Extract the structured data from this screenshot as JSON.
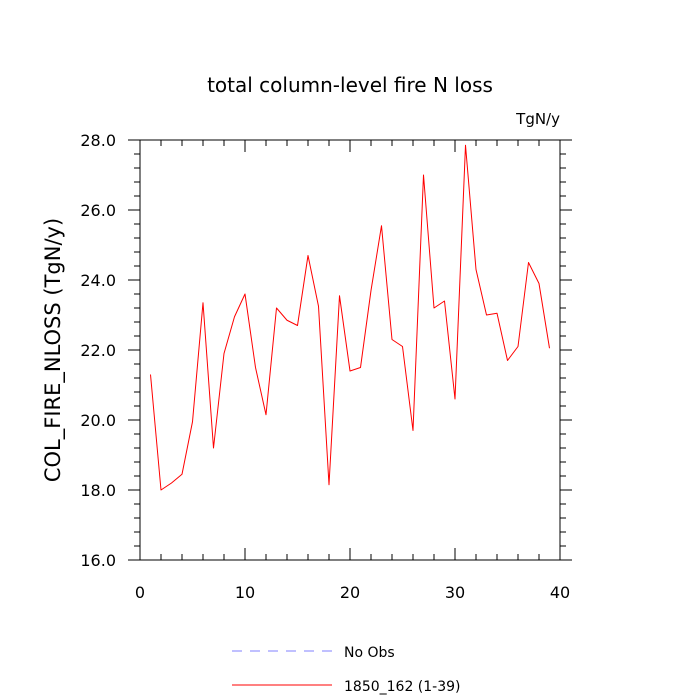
{
  "chart_data": {
    "type": "line",
    "title": "total column-level fire N loss",
    "units_label": "TgN/y",
    "xlabel": "",
    "ylabel": "COL_FIRE_NLOSS  (TgN/y)",
    "xlim": [
      0,
      40
    ],
    "ylim": [
      16,
      28
    ],
    "x_ticks": [
      0,
      10,
      20,
      30,
      40
    ],
    "y_ticks": [
      16,
      18,
      20,
      22,
      24,
      26,
      28
    ],
    "x_tick_labels": [
      "0",
      "10",
      "20",
      "30",
      "40"
    ],
    "y_tick_labels": [
      "16.0",
      "18.0",
      "20.0",
      "22.0",
      "24.0",
      "26.0",
      "28.0"
    ],
    "grid": false,
    "series": [
      {
        "name": "1850_162 (1-39)",
        "color": "#ff0000",
        "style": "solid",
        "x": [
          1,
          2,
          3,
          4,
          5,
          6,
          7,
          8,
          9,
          10,
          11,
          12,
          13,
          14,
          15,
          16,
          17,
          18,
          19,
          20,
          21,
          22,
          23,
          24,
          25,
          26,
          27,
          28,
          29,
          30,
          31,
          32,
          33,
          34,
          35,
          36,
          37,
          38,
          39
        ],
        "values": [
          21.3,
          18.0,
          18.2,
          18.45,
          19.95,
          23.35,
          19.2,
          21.9,
          22.95,
          23.6,
          21.5,
          20.15,
          23.2,
          22.85,
          22.7,
          24.7,
          23.25,
          18.15,
          23.55,
          21.4,
          21.5,
          23.7,
          25.55,
          22.3,
          22.1,
          19.7,
          27.0,
          23.2,
          23.4,
          20.6,
          27.85,
          24.3,
          23.0,
          23.05,
          21.7,
          22.1,
          24.5,
          23.9,
          22.05
        ]
      },
      {
        "name": "No Obs",
        "color": "#8080ff",
        "style": "dashed",
        "x": [],
        "values": []
      }
    ],
    "legend": {
      "placement": "bottom",
      "entries": [
        "No Obs",
        "1850_162 (1-39)"
      ]
    }
  }
}
